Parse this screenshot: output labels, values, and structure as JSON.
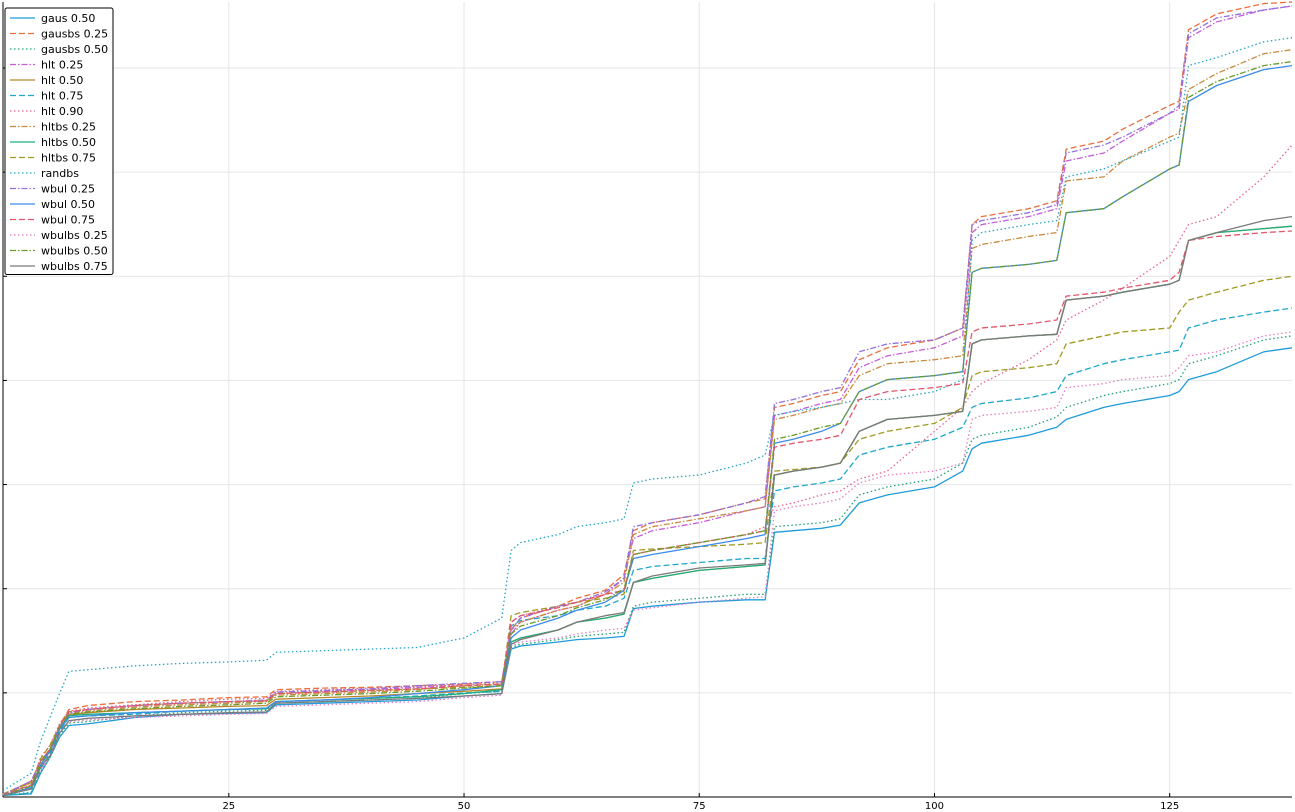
{
  "chart_data": {
    "type": "line",
    "title": "",
    "xlabel": "",
    "ylabel": "",
    "xlim": [
      1,
      138
    ],
    "ylim": [
      0,
      1
    ],
    "xticks": [
      25,
      50,
      75,
      100,
      125
    ],
    "ytick_values": [
      0.131,
      0.262,
      0.393,
      0.524,
      0.655,
      0.786,
      0.917
    ],
    "grid": true,
    "legend_position": "top-left",
    "x": [
      1,
      4,
      5,
      6,
      7,
      8,
      10,
      15,
      20,
      25,
      29,
      30,
      35,
      40,
      45,
      50,
      54,
      55,
      56,
      60,
      62,
      65,
      67,
      68,
      70,
      75,
      80,
      82,
      83,
      85,
      88,
      90,
      92,
      95,
      100,
      103,
      104,
      105,
      110,
      113,
      114,
      118,
      120,
      125,
      126,
      127,
      130,
      135,
      138
    ],
    "series": [
      {
        "name": "gaus 0.50",
        "color": "#1f9bd9",
        "dash": "solid",
        "values": [
          0.002,
          0.004,
          0.03,
          0.05,
          0.075,
          0.09,
          0.092,
          0.1,
          0.104,
          0.105,
          0.106,
          0.116,
          0.118,
          0.12,
          0.122,
          0.127,
          0.13,
          0.186,
          0.19,
          0.195,
          0.198,
          0.2,
          0.202,
          0.237,
          0.24,
          0.245,
          0.248,
          0.248,
          0.333,
          0.335,
          0.338,
          0.342,
          0.37,
          0.38,
          0.39,
          0.41,
          0.438,
          0.445,
          0.455,
          0.465,
          0.475,
          0.49,
          0.495,
          0.505,
          0.51,
          0.525,
          0.535,
          0.56,
          0.565
        ]
      },
      {
        "name": "gausbs 0.25",
        "color": "#e86f3b",
        "dash": "dashed",
        "values": [
          0.003,
          0.02,
          0.045,
          0.06,
          0.09,
          0.11,
          0.115,
          0.12,
          0.122,
          0.125,
          0.126,
          0.135,
          0.137,
          0.138,
          0.14,
          0.142,
          0.145,
          0.21,
          0.225,
          0.24,
          0.25,
          0.26,
          0.28,
          0.335,
          0.345,
          0.355,
          0.37,
          0.375,
          0.49,
          0.495,
          0.505,
          0.51,
          0.55,
          0.565,
          0.575,
          0.59,
          0.72,
          0.73,
          0.74,
          0.75,
          0.815,
          0.825,
          0.84,
          0.87,
          0.875,
          0.965,
          0.985,
          0.998,
          1.0
        ]
      },
      {
        "name": "gausbs 0.50",
        "color": "#20a36d",
        "dash": "dotted",
        "values": [
          0.002,
          0.006,
          0.032,
          0.05,
          0.078,
          0.093,
          0.095,
          0.102,
          0.106,
          0.108,
          0.109,
          0.118,
          0.12,
          0.122,
          0.124,
          0.13,
          0.133,
          0.188,
          0.192,
          0.198,
          0.202,
          0.205,
          0.207,
          0.24,
          0.245,
          0.25,
          0.255,
          0.255,
          0.34,
          0.342,
          0.345,
          0.35,
          0.38,
          0.39,
          0.4,
          0.42,
          0.45,
          0.455,
          0.465,
          0.478,
          0.49,
          0.505,
          0.51,
          0.52,
          0.525,
          0.545,
          0.555,
          0.575,
          0.58
        ]
      },
      {
        "name": "hlt 0.25",
        "color": "#c65dd6",
        "dash": "dashdot",
        "values": [
          0.003,
          0.02,
          0.045,
          0.06,
          0.088,
          0.105,
          0.11,
          0.115,
          0.118,
          0.12,
          0.121,
          0.13,
          0.133,
          0.135,
          0.138,
          0.14,
          0.142,
          0.205,
          0.22,
          0.235,
          0.24,
          0.255,
          0.275,
          0.325,
          0.335,
          0.345,
          0.36,
          0.365,
          0.48,
          0.485,
          0.495,
          0.5,
          0.54,
          0.555,
          0.565,
          0.58,
          0.71,
          0.72,
          0.73,
          0.74,
          0.8,
          0.81,
          0.825,
          0.86,
          0.865,
          0.955,
          0.975,
          0.99,
          0.995
        ]
      },
      {
        "name": "hlt 0.50",
        "color": "#b8862a",
        "dash": "solid",
        "values": [
          0.002,
          0.012,
          0.04,
          0.058,
          0.085,
          0.103,
          0.106,
          0.11,
          0.112,
          0.114,
          0.115,
          0.123,
          0.125,
          0.127,
          0.13,
          0.133,
          0.136,
          0.195,
          0.2,
          0.21,
          0.22,
          0.225,
          0.23,
          0.27,
          0.275,
          0.285,
          0.29,
          0.292,
          0.405,
          0.41,
          0.415,
          0.42,
          0.46,
          0.475,
          0.48,
          0.485,
          0.57,
          0.575,
          0.58,
          0.582,
          0.625,
          0.63,
          0.635,
          0.645,
          0.65,
          0.7,
          0.71,
          0.715,
          0.718
        ]
      },
      {
        "name": "hlt 0.75",
        "color": "#1ea7c9",
        "dash": "dashed",
        "values": [
          0.002,
          0.005,
          0.035,
          0.055,
          0.082,
          0.1,
          0.102,
          0.104,
          0.108,
          0.11,
          0.111,
          0.12,
          0.122,
          0.124,
          0.127,
          0.131,
          0.133,
          0.215,
          0.222,
          0.228,
          0.235,
          0.24,
          0.25,
          0.285,
          0.29,
          0.295,
          0.3,
          0.3,
          0.385,
          0.39,
          0.395,
          0.4,
          0.43,
          0.44,
          0.45,
          0.465,
          0.49,
          0.495,
          0.502,
          0.51,
          0.53,
          0.545,
          0.55,
          0.56,
          0.562,
          0.59,
          0.6,
          0.61,
          0.615
        ]
      },
      {
        "name": "hlt 0.90",
        "color": "#e8638f",
        "dash": "dotted",
        "values": [
          0.004,
          0.015,
          0.05,
          0.065,
          0.092,
          0.108,
          0.112,
          0.116,
          0.12,
          0.123,
          0.124,
          0.133,
          0.135,
          0.137,
          0.139,
          0.141,
          0.143,
          0.22,
          0.228,
          0.24,
          0.245,
          0.255,
          0.258,
          0.305,
          0.31,
          0.32,
          0.33,
          0.34,
          0.365,
          0.37,
          0.38,
          0.385,
          0.4,
          0.41,
          0.46,
          0.49,
          0.51,
          0.52,
          0.55,
          0.575,
          0.6,
          0.625,
          0.64,
          0.68,
          0.7,
          0.72,
          0.73,
          0.78,
          0.82
        ]
      },
      {
        "name": "hltbs 0.25",
        "color": "#c98a3d",
        "dash": "dashdot",
        "values": [
          0.003,
          0.018,
          0.045,
          0.06,
          0.088,
          0.105,
          0.108,
          0.113,
          0.116,
          0.118,
          0.12,
          0.128,
          0.13,
          0.132,
          0.135,
          0.14,
          0.142,
          0.21,
          0.22,
          0.235,
          0.24,
          0.255,
          0.27,
          0.33,
          0.34,
          0.35,
          0.36,
          0.365,
          0.475,
          0.48,
          0.49,
          0.495,
          0.53,
          0.545,
          0.55,
          0.555,
          0.69,
          0.695,
          0.705,
          0.71,
          0.775,
          0.78,
          0.8,
          0.83,
          0.835,
          0.89,
          0.91,
          0.935,
          0.94
        ]
      },
      {
        "name": "hltbs 0.50",
        "color": "#1faf7e",
        "dash": "solid",
        "values": [
          0.002,
          0.01,
          0.04,
          0.058,
          0.085,
          0.102,
          0.104,
          0.106,
          0.108,
          0.11,
          0.111,
          0.12,
          0.122,
          0.124,
          0.126,
          0.13,
          0.135,
          0.195,
          0.2,
          0.21,
          0.22,
          0.225,
          0.23,
          0.27,
          0.275,
          0.285,
          0.29,
          0.292,
          0.405,
          0.41,
          0.415,
          0.42,
          0.46,
          0.475,
          0.48,
          0.485,
          0.57,
          0.575,
          0.58,
          0.582,
          0.625,
          0.63,
          0.635,
          0.645,
          0.65,
          0.7,
          0.71,
          0.715,
          0.718
        ]
      },
      {
        "name": "hltbs 0.75",
        "color": "#a19a22",
        "dash": "dashed",
        "values": [
          0.004,
          0.018,
          0.048,
          0.065,
          0.09,
          0.107,
          0.11,
          0.115,
          0.118,
          0.12,
          0.121,
          0.13,
          0.132,
          0.134,
          0.136,
          0.138,
          0.14,
          0.228,
          0.232,
          0.24,
          0.245,
          0.25,
          0.255,
          0.31,
          0.312,
          0.315,
          0.318,
          0.32,
          0.41,
          0.412,
          0.415,
          0.42,
          0.45,
          0.46,
          0.47,
          0.49,
          0.53,
          0.535,
          0.54,
          0.545,
          0.57,
          0.58,
          0.585,
          0.59,
          0.61,
          0.625,
          0.635,
          0.65,
          0.655
        ]
      },
      {
        "name": "randbs",
        "color": "#25a5c4",
        "dash": "dotted",
        "values": [
          0.008,
          0.03,
          0.07,
          0.1,
          0.13,
          0.158,
          0.16,
          0.165,
          0.168,
          0.17,
          0.172,
          0.182,
          0.184,
          0.186,
          0.188,
          0.2,
          0.225,
          0.31,
          0.32,
          0.33,
          0.34,
          0.345,
          0.35,
          0.395,
          0.4,
          0.405,
          0.42,
          0.43,
          0.48,
          0.485,
          0.49,
          0.495,
          0.5,
          0.5,
          0.51,
          0.525,
          0.7,
          0.71,
          0.72,
          0.725,
          0.78,
          0.79,
          0.8,
          0.825,
          0.83,
          0.92,
          0.93,
          0.95,
          0.955
        ]
      },
      {
        "name": "wbul 0.25",
        "color": "#9370db",
        "dash": "dashdot",
        "values": [
          0.003,
          0.02,
          0.045,
          0.06,
          0.088,
          0.106,
          0.11,
          0.115,
          0.118,
          0.12,
          0.122,
          0.132,
          0.134,
          0.136,
          0.14,
          0.143,
          0.145,
          0.21,
          0.225,
          0.24,
          0.245,
          0.258,
          0.275,
          0.34,
          0.345,
          0.355,
          0.37,
          0.378,
          0.495,
          0.5,
          0.51,
          0.515,
          0.56,
          0.57,
          0.575,
          0.59,
          0.72,
          0.725,
          0.735,
          0.745,
          0.81,
          0.82,
          0.83,
          0.86,
          0.87,
          0.96,
          0.98,
          0.99,
          0.995
        ]
      },
      {
        "name": "wbul 0.50",
        "color": "#3c8be8",
        "dash": "solid",
        "values": [
          0.002,
          0.012,
          0.04,
          0.058,
          0.085,
          0.1,
          0.102,
          0.106,
          0.108,
          0.11,
          0.112,
          0.12,
          0.122,
          0.125,
          0.13,
          0.135,
          0.14,
          0.2,
          0.21,
          0.225,
          0.235,
          0.245,
          0.26,
          0.3,
          0.305,
          0.315,
          0.325,
          0.33,
          0.445,
          0.45,
          0.46,
          0.47,
          0.51,
          0.525,
          0.53,
          0.535,
          0.66,
          0.665,
          0.67,
          0.675,
          0.735,
          0.74,
          0.755,
          0.79,
          0.795,
          0.875,
          0.895,
          0.915,
          0.92
        ]
      },
      {
        "name": "wbul 0.75",
        "color": "#e0576b",
        "dash": "dashed",
        "values": [
          0.003,
          0.015,
          0.045,
          0.06,
          0.09,
          0.107,
          0.11,
          0.115,
          0.118,
          0.12,
          0.121,
          0.13,
          0.132,
          0.134,
          0.136,
          0.14,
          0.142,
          0.22,
          0.228,
          0.238,
          0.245,
          0.255,
          0.26,
          0.305,
          0.31,
          0.32,
          0.33,
          0.335,
          0.44,
          0.445,
          0.45,
          0.455,
          0.5,
          0.51,
          0.515,
          0.52,
          0.585,
          0.59,
          0.595,
          0.6,
          0.63,
          0.635,
          0.64,
          0.65,
          0.66,
          0.7,
          0.705,
          0.71,
          0.712
        ]
      },
      {
        "name": "wbulbs 0.25",
        "color": "#e67ec3",
        "dash": "dotted",
        "values": [
          0.003,
          0.01,
          0.035,
          0.05,
          0.08,
          0.095,
          0.097,
          0.1,
          0.102,
          0.104,
          0.105,
          0.114,
          0.116,
          0.118,
          0.12,
          0.125,
          0.128,
          0.19,
          0.195,
          0.2,
          0.205,
          0.21,
          0.212,
          0.235,
          0.238,
          0.245,
          0.25,
          0.252,
          0.36,
          0.365,
          0.37,
          0.375,
          0.395,
          0.405,
          0.41,
          0.42,
          0.475,
          0.48,
          0.485,
          0.49,
          0.515,
          0.52,
          0.525,
          0.53,
          0.54,
          0.555,
          0.56,
          0.58,
          0.585
        ]
      },
      {
        "name": "wbulbs 0.50",
        "color": "#6b9b2a",
        "dash": "dashdot",
        "values": [
          0.002,
          0.014,
          0.042,
          0.06,
          0.087,
          0.104,
          0.107,
          0.111,
          0.114,
          0.116,
          0.118,
          0.126,
          0.128,
          0.13,
          0.133,
          0.137,
          0.14,
          0.205,
          0.215,
          0.228,
          0.238,
          0.248,
          0.262,
          0.305,
          0.31,
          0.32,
          0.33,
          0.335,
          0.45,
          0.455,
          0.465,
          0.47,
          0.51,
          0.525,
          0.53,
          0.535,
          0.66,
          0.665,
          0.67,
          0.675,
          0.735,
          0.74,
          0.755,
          0.79,
          0.795,
          0.88,
          0.9,
          0.92,
          0.925
        ]
      },
      {
        "name": "wbulbs 0.75",
        "color": "#7a7a7a",
        "dash": "solid",
        "values": [
          0.002,
          0.01,
          0.038,
          0.052,
          0.08,
          0.096,
          0.099,
          0.102,
          0.104,
          0.106,
          0.107,
          0.118,
          0.12,
          0.122,
          0.124,
          0.127,
          0.13,
          0.192,
          0.198,
          0.21,
          0.22,
          0.228,
          0.232,
          0.27,
          0.278,
          0.288,
          0.292,
          0.294,
          0.405,
          0.41,
          0.415,
          0.42,
          0.46,
          0.475,
          0.48,
          0.485,
          0.57,
          0.575,
          0.58,
          0.582,
          0.625,
          0.63,
          0.635,
          0.645,
          0.65,
          0.7,
          0.71,
          0.725,
          0.73
        ]
      }
    ]
  }
}
